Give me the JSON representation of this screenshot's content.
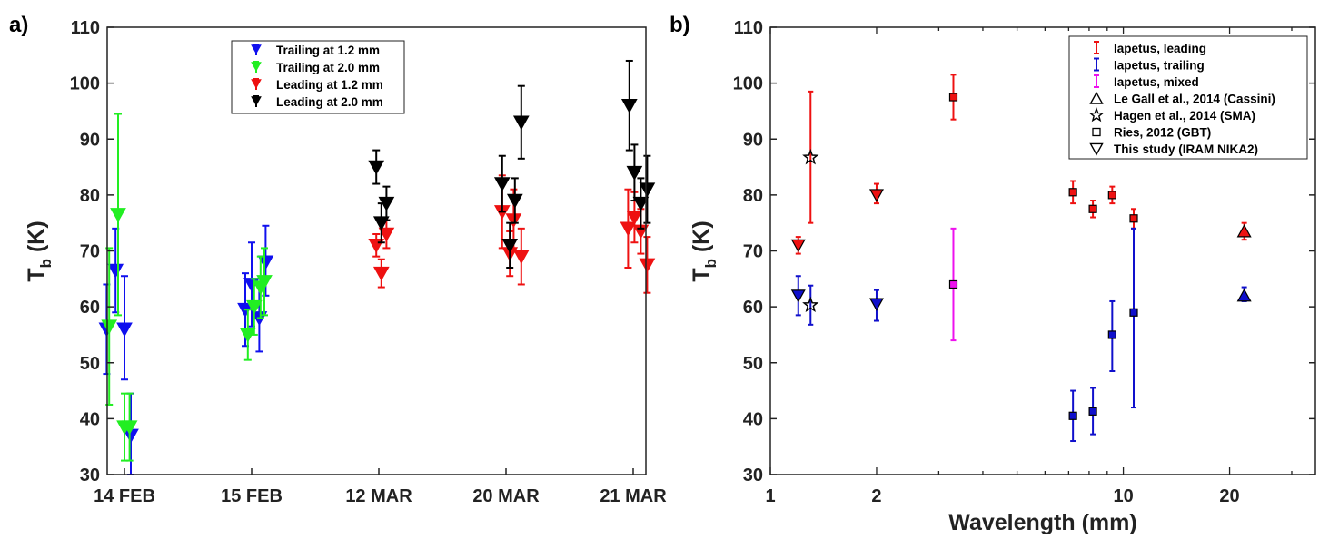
{
  "chart_data": [
    {
      "panel_label": "a)",
      "type": "scatter",
      "ylabel_main": "T",
      "ylabel_sub": "b",
      "ylabel_unit": " (K)",
      "xlabel": "",
      "ylim": [
        30,
        110
      ],
      "yticks": [
        30,
        40,
        50,
        60,
        70,
        80,
        90,
        100,
        110
      ],
      "categories": [
        "14 FEB",
        "15 FEB",
        "12 MAR",
        "20 MAR",
        "21 MAR"
      ],
      "legend": [
        {
          "label": "Trailing at 1.2 mm",
          "color": "#1010ee"
        },
        {
          "label": "Trailing at 2.0 mm",
          "color": "#22ee22"
        },
        {
          "label": "Leading at 1.2 mm",
          "color": "#ee1111"
        },
        {
          "label": "Leading at 2.0 mm",
          "color": "#000000"
        }
      ],
      "series": [
        {
          "name": "Trailing at 1.2 mm",
          "color": "#1010ee",
          "points": [
            {
              "x": -0.14,
              "y": 56.0,
              "lo": 48.0,
              "hi": 64.0
            },
            {
              "x": -0.07,
              "y": 66.5,
              "lo": 59.0,
              "hi": 74.0
            },
            {
              "x": 0.0,
              "y": 56.0,
              "lo": 47.0,
              "hi": 65.5
            },
            {
              "x": 0.05,
              "y": 37.0,
              "lo": 29.0,
              "hi": 44.5
            },
            {
              "x": 0.95,
              "y": 59.5,
              "lo": 53.0,
              "hi": 66.0
            },
            {
              "x": 1.0,
              "y": 64.0,
              "lo": 56.5,
              "hi": 71.5
            },
            {
              "x": 1.06,
              "y": 58.0,
              "lo": 52.0,
              "hi": 64.0
            },
            {
              "x": 1.11,
              "y": 68.0,
              "lo": 62.0,
              "hi": 74.5
            }
          ]
        },
        {
          "name": "Trailing at 2.0 mm",
          "color": "#22ee22",
          "points": [
            {
              "x": -0.12,
              "y": 56.5,
              "lo": 42.5,
              "hi": 70.5
            },
            {
              "x": -0.05,
              "y": 76.5,
              "lo": 58.5,
              "hi": 94.5
            },
            {
              "x": 0.0,
              "y": 38.5,
              "lo": 32.5,
              "hi": 44.5
            },
            {
              "x": 0.04,
              "y": 38.5,
              "lo": 32.5,
              "hi": 44.5
            },
            {
              "x": 0.97,
              "y": 55.0,
              "lo": 50.5,
              "hi": 59.5
            },
            {
              "x": 1.02,
              "y": 60.0,
              "lo": 55.0,
              "hi": 65.0
            },
            {
              "x": 1.07,
              "y": 63.5,
              "lo": 58.0,
              "hi": 69.0
            },
            {
              "x": 1.1,
              "y": 64.5,
              "lo": 58.5,
              "hi": 70.5
            }
          ]
        },
        {
          "name": "Leading at 1.2 mm",
          "color": "#ee1111",
          "points": [
            {
              "x": 1.98,
              "y": 71.0,
              "lo": 69.0,
              "hi": 73.0
            },
            {
              "x": 2.02,
              "y": 66.0,
              "lo": 63.5,
              "hi": 68.5
            },
            {
              "x": 2.06,
              "y": 73.0,
              "lo": 70.5,
              "hi": 75.5
            },
            {
              "x": 2.97,
              "y": 77.0,
              "lo": 70.5,
              "hi": 83.5
            },
            {
              "x": 3.03,
              "y": 69.5,
              "lo": 65.5,
              "hi": 73.5
            },
            {
              "x": 3.06,
              "y": 75.5,
              "lo": 70.0,
              "hi": 81.0
            },
            {
              "x": 3.12,
              "y": 69.0,
              "lo": 64.0,
              "hi": 74.0
            },
            {
              "x": 3.96,
              "y": 74.0,
              "lo": 67.0,
              "hi": 81.0
            },
            {
              "x": 4.01,
              "y": 76.0,
              "lo": 71.5,
              "hi": 80.5
            },
            {
              "x": 4.06,
              "y": 73.5,
              "lo": 69.5,
              "hi": 77.5
            },
            {
              "x": 4.11,
              "y": 67.5,
              "lo": 62.5,
              "hi": 72.5
            }
          ]
        },
        {
          "name": "Leading at 2.0 mm",
          "color": "#000000",
          "points": [
            {
              "x": 1.98,
              "y": 85.0,
              "lo": 82.0,
              "hi": 88.0
            },
            {
              "x": 2.02,
              "y": 75.0,
              "lo": 71.5,
              "hi": 78.5
            },
            {
              "x": 2.06,
              "y": 78.5,
              "lo": 75.5,
              "hi": 81.5
            },
            {
              "x": 2.97,
              "y": 82.0,
              "lo": 77.0,
              "hi": 87.0
            },
            {
              "x": 3.03,
              "y": 71.0,
              "lo": 67.0,
              "hi": 75.0
            },
            {
              "x": 3.07,
              "y": 79.0,
              "lo": 75.0,
              "hi": 83.0
            },
            {
              "x": 3.12,
              "y": 93.0,
              "lo": 86.5,
              "hi": 99.5
            },
            {
              "x": 3.97,
              "y": 96.0,
              "lo": 88.0,
              "hi": 104.0
            },
            {
              "x": 4.01,
              "y": 84.0,
              "lo": 79.0,
              "hi": 89.0
            },
            {
              "x": 4.06,
              "y": 78.5,
              "lo": 74.0,
              "hi": 83.0
            },
            {
              "x": 4.11,
              "y": 81.0,
              "lo": 75.0,
              "hi": 87.0
            }
          ]
        }
      ]
    },
    {
      "panel_label": "b)",
      "type": "scatter",
      "xscale": "log",
      "xlabel": "Wavelength (mm)",
      "ylabel_main": "T",
      "ylabel_sub": "b",
      "ylabel_unit": " (K)",
      "xlim": [
        1,
        35
      ],
      "ylim": [
        30,
        110
      ],
      "xticks": [
        1,
        2,
        10,
        20
      ],
      "yticks": [
        30,
        40,
        50,
        60,
        70,
        80,
        90,
        100,
        110
      ],
      "legend": [
        {
          "label": "Iapetus, leading",
          "kind": "errorbar",
          "color": "#ee1111"
        },
        {
          "label": "Iapetus, trailing",
          "kind": "errorbar",
          "color": "#1010cc"
        },
        {
          "label": "Iapetus, mixed",
          "kind": "errorbar",
          "color": "#ee11ee"
        },
        {
          "label": "Le Gall et al., 2014 (Cassini)",
          "kind": "triangle-up"
        },
        {
          "label": "Hagen et al., 2014 (SMA)",
          "kind": "star"
        },
        {
          "label": "Ries, 2012 (GBT)",
          "kind": "square"
        },
        {
          "label": "This study (IRAM NIKA2)",
          "kind": "triangle-down"
        }
      ],
      "points": [
        {
          "group": "leading",
          "marker": "triangle-down",
          "x": 1.2,
          "y": 71.0,
          "lo": 69.5,
          "hi": 72.5
        },
        {
          "group": "leading",
          "marker": "star",
          "x": 1.3,
          "y": 86.7,
          "lo": 75.0,
          "hi": 98.5
        },
        {
          "group": "leading",
          "marker": "triangle-down",
          "x": 2.0,
          "y": 80.0,
          "lo": 78.5,
          "hi": 82.0
        },
        {
          "group": "leading",
          "marker": "square",
          "x": 3.3,
          "y": 97.5,
          "lo": 93.5,
          "hi": 101.5
        },
        {
          "group": "leading",
          "marker": "square",
          "x": 7.2,
          "y": 80.5,
          "lo": 78.5,
          "hi": 82.5
        },
        {
          "group": "leading",
          "marker": "square",
          "x": 8.2,
          "y": 77.5,
          "lo": 76.0,
          "hi": 79.0
        },
        {
          "group": "leading",
          "marker": "square",
          "x": 9.3,
          "y": 80.0,
          "lo": 78.5,
          "hi": 81.5
        },
        {
          "group": "leading",
          "marker": "square",
          "x": 10.7,
          "y": 75.8,
          "lo": 74.0,
          "hi": 77.5
        },
        {
          "group": "leading",
          "marker": "triangle-up",
          "x": 22.0,
          "y": 73.5,
          "lo": 72.0,
          "hi": 75.0
        },
        {
          "group": "trailing",
          "marker": "triangle-down",
          "x": 1.2,
          "y": 62.0,
          "lo": 58.5,
          "hi": 65.5
        },
        {
          "group": "trailing",
          "marker": "star",
          "x": 1.3,
          "y": 60.3,
          "lo": 56.8,
          "hi": 63.8
        },
        {
          "group": "trailing",
          "marker": "triangle-down",
          "x": 2.0,
          "y": 60.5,
          "lo": 57.5,
          "hi": 63.0
        },
        {
          "group": "trailing",
          "marker": "square",
          "x": 7.2,
          "y": 40.5,
          "lo": 36.0,
          "hi": 45.0
        },
        {
          "group": "trailing",
          "marker": "square",
          "x": 8.2,
          "y": 41.3,
          "lo": 37.2,
          "hi": 45.5
        },
        {
          "group": "trailing",
          "marker": "square",
          "x": 9.3,
          "y": 55.0,
          "lo": 48.5,
          "hi": 61.0
        },
        {
          "group": "trailing",
          "marker": "square",
          "x": 10.7,
          "y": 59.0,
          "lo": 42.0,
          "hi": 74.0
        },
        {
          "group": "trailing",
          "marker": "triangle-up",
          "x": 22.0,
          "y": 62.0,
          "lo": 61.0,
          "hi": 63.5
        },
        {
          "group": "mixed",
          "marker": "square",
          "x": 3.3,
          "y": 64.0,
          "lo": 54.0,
          "hi": 74.0
        }
      ]
    }
  ]
}
